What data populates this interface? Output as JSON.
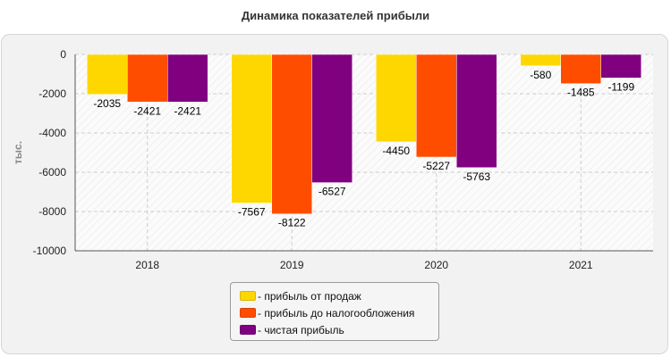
{
  "chart_data": {
    "type": "bar",
    "title": "Динамика показателей прибыли",
    "ylabel": "тыс.",
    "xlabel": "",
    "categories": [
      "2018",
      "2019",
      "2020",
      "2021"
    ],
    "ylim": [
      -10000,
      0
    ],
    "yticks": [
      0,
      -2000,
      -4000,
      -6000,
      -8000,
      -10000
    ],
    "grid": true,
    "legend_position": "bottom",
    "series": [
      {
        "name": "прибыль от продаж",
        "color": "#ffd700",
        "values": [
          -2035,
          -7567,
          -4450,
          -580
        ]
      },
      {
        "name": "прибыль до налогообложения",
        "color": "#ff4d00",
        "values": [
          -2421,
          -8122,
          -5227,
          -1485
        ]
      },
      {
        "name": "чистая прибыль",
        "color": "#800080",
        "values": [
          -2421,
          -6527,
          -5763,
          -1199
        ]
      }
    ]
  },
  "legend": {
    "items": [
      {
        "label": "- прибыль от продаж"
      },
      {
        "label": "- прибыль до налогообложения"
      },
      {
        "label": "- чистая прибыль"
      }
    ]
  }
}
